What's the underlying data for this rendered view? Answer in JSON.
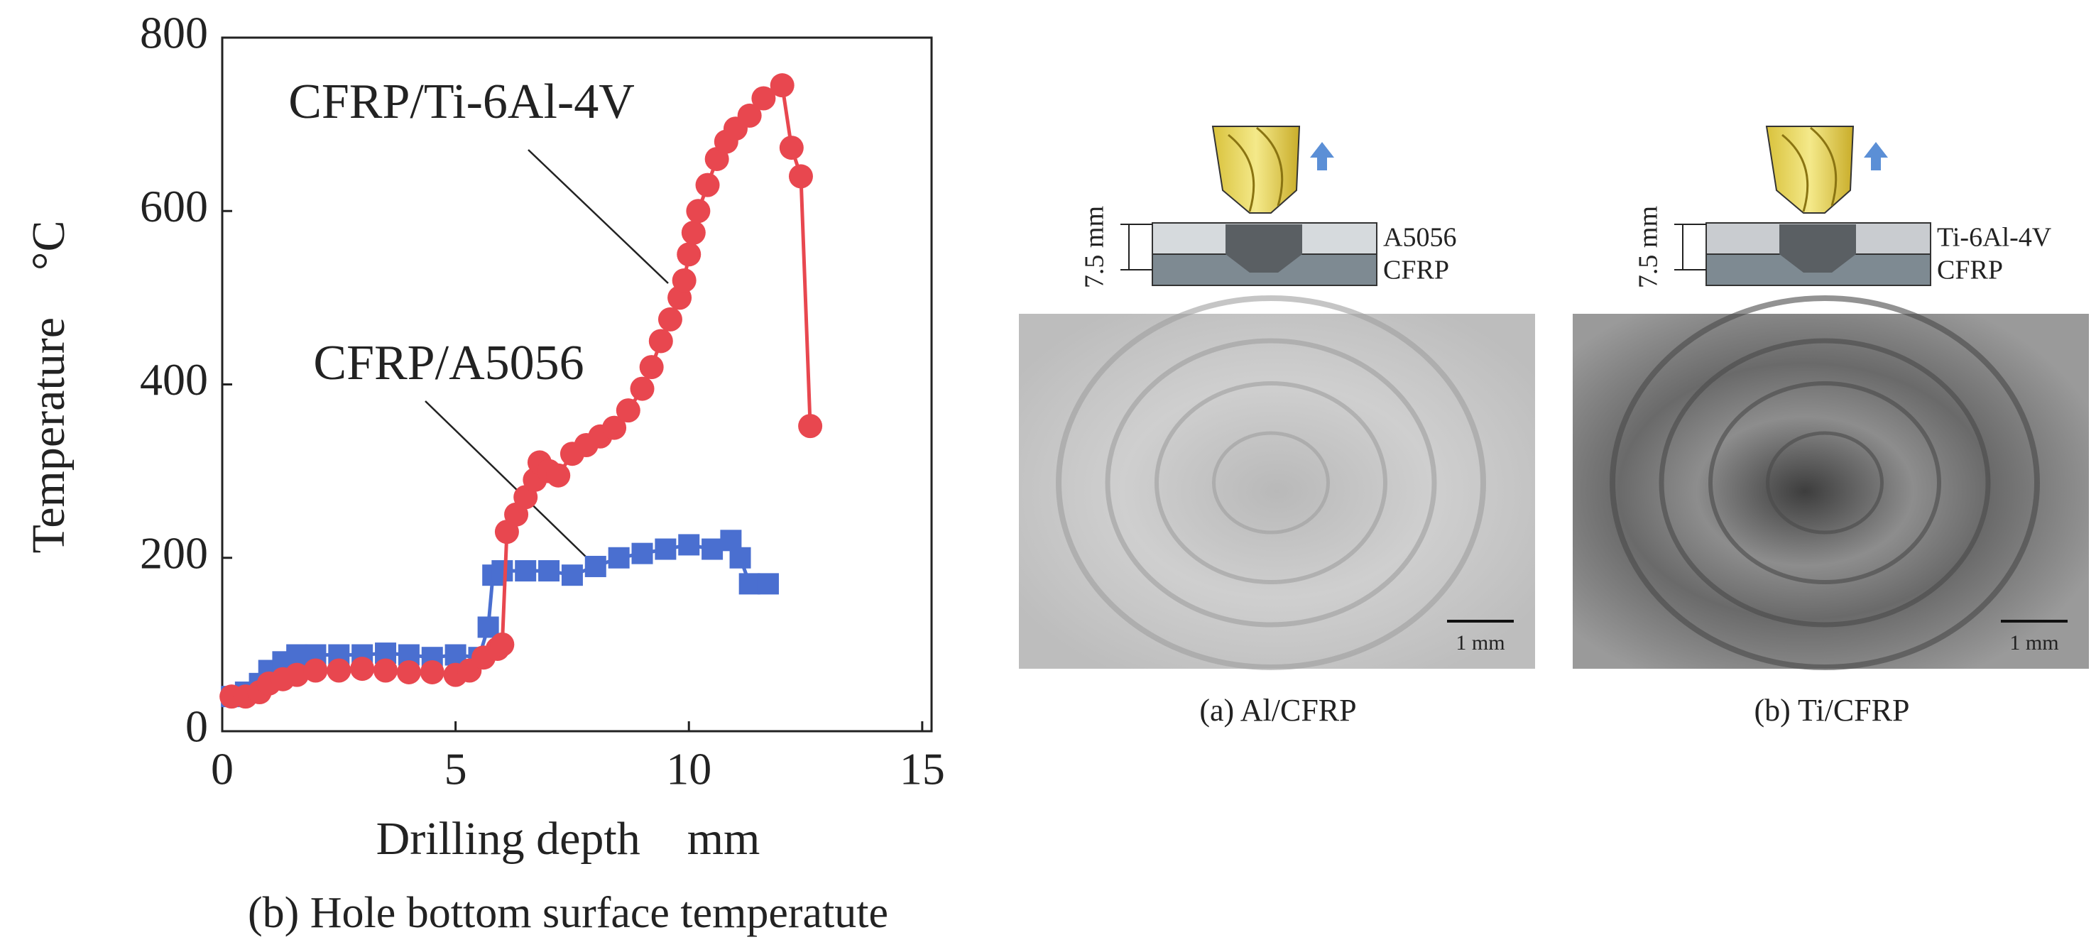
{
  "chart_data": {
    "type": "line",
    "xlabel": "Drilling depth　mm",
    "ylabel": "Temperature　°C",
    "caption": "(b) Hole bottom surface temperatute",
    "xlim": [
      0,
      15.2
    ],
    "xticks": [
      0,
      5,
      10,
      15
    ],
    "ylim": [
      0,
      800
    ],
    "yticks": [
      0,
      200,
      400,
      600,
      800
    ],
    "annotations": [
      "CFRP/Ti-6Al-4V",
      "CFRP/A5056"
    ],
    "series": [
      {
        "name": "CFRP/A5056",
        "color": "#4a6fd0",
        "marker": "square",
        "x": [
          0.2,
          0.5,
          0.8,
          1.0,
          1.3,
          1.6,
          2.0,
          2.5,
          3.0,
          3.5,
          4.0,
          4.5,
          5.0,
          5.5,
          5.7,
          5.8,
          6.0,
          6.5,
          7.0,
          7.5,
          8.0,
          8.5,
          9.0,
          9.5,
          10.0,
          10.5,
          10.9,
          11.1,
          11.3,
          11.7
        ],
        "values": [
          40,
          45,
          55,
          70,
          80,
          88,
          88,
          88,
          88,
          90,
          88,
          85,
          88,
          85,
          120,
          180,
          185,
          185,
          185,
          180,
          190,
          200,
          205,
          210,
          215,
          210,
          220,
          200,
          170,
          170
        ]
      },
      {
        "name": "CFRP/Ti-6Al-4V",
        "color": "#e8474f",
        "marker": "circle",
        "x": [
          0.2,
          0.5,
          0.8,
          1.0,
          1.3,
          1.6,
          2.0,
          2.5,
          3.0,
          3.5,
          4.0,
          4.5,
          5.0,
          5.3,
          5.6,
          5.9,
          6.0,
          6.1,
          6.3,
          6.5,
          6.7,
          6.8,
          7.0,
          7.2,
          7.5,
          7.8,
          8.1,
          8.4,
          8.7,
          9.0,
          9.2,
          9.4,
          9.6,
          9.8,
          9.9,
          10.0,
          10.1,
          10.2,
          10.4,
          10.6,
          10.8,
          11.0,
          11.3,
          11.6,
          12.0,
          12.2,
          12.4,
          12.6
        ],
        "values": [
          40,
          40,
          45,
          55,
          60,
          65,
          70,
          70,
          72,
          70,
          68,
          68,
          65,
          70,
          85,
          95,
          100,
          230,
          250,
          270,
          290,
          310,
          300,
          295,
          320,
          330,
          340,
          350,
          370,
          395,
          420,
          450,
          475,
          500,
          520,
          550,
          575,
          600,
          630,
          660,
          680,
          695,
          710,
          730,
          745,
          673,
          640,
          352
        ]
      }
    ]
  },
  "figure": {
    "panels": [
      {
        "thickness": "7.5 mm",
        "layers": [
          "A5056",
          "CFRP"
        ],
        "scale": "1 mm",
        "caption": "(a) Al/CFRP"
      },
      {
        "thickness": "7.5 mm",
        "layers": [
          "Ti-6Al-4V",
          "CFRP"
        ],
        "scale": "1 mm",
        "caption": "(b) Ti/CFRP"
      }
    ]
  }
}
